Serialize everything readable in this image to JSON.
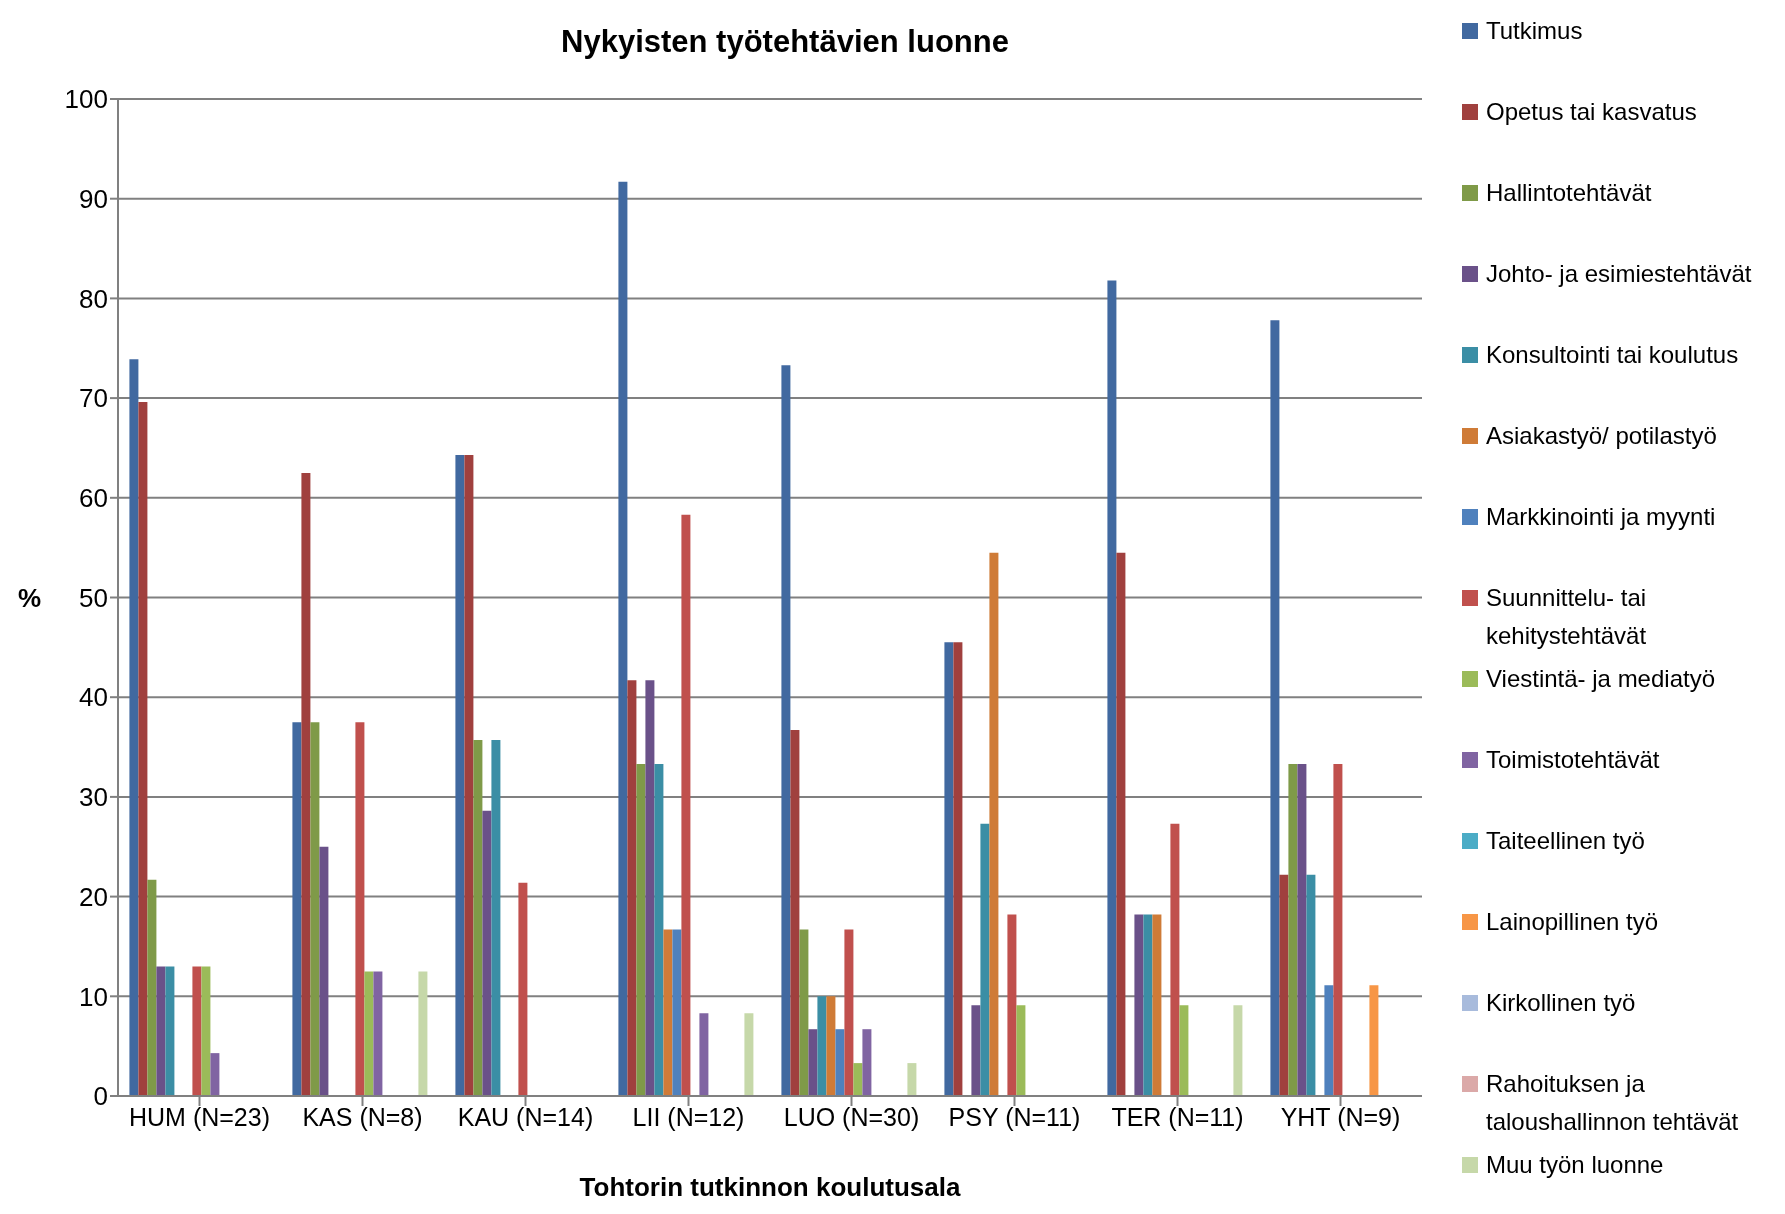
{
  "chart_data": {
    "type": "bar",
    "title": "Nykyisten työtehtävien luonne",
    "xlabel": "Tohtorin tutkinnon koulutusala",
    "ylabel": "%",
    "categories": [
      "HUM (N=23)",
      "KAS (N=8)",
      "KAU (N=14)",
      "LII (N=12)",
      "LUO (N=30)",
      "PSY (N=11)",
      "TER (N=11)",
      "YHT (N=9)"
    ],
    "series": [
      {
        "name": "Tutkimus",
        "color": "#4169a0",
        "values": [
          73.9,
          37.5,
          64.3,
          91.7,
          73.3,
          45.5,
          81.8,
          77.8
        ]
      },
      {
        "name": "Opetus tai kasvatus",
        "color": "#a0403e",
        "values": [
          69.6,
          62.5,
          64.3,
          41.7,
          36.7,
          45.5,
          54.5,
          22.2
        ]
      },
      {
        "name": "Hallintotehtävät",
        "color": "#7f9a48",
        "values": [
          21.7,
          37.5,
          35.7,
          33.3,
          16.7,
          0,
          0,
          33.3
        ]
      },
      {
        "name": "Johto- ja esimiestehtävät",
        "color": "#6a5189",
        "values": [
          13.0,
          25.0,
          28.6,
          41.7,
          6.7,
          9.1,
          18.2,
          33.3
        ]
      },
      {
        "name": "Konsultointi tai koulutus",
        "color": "#3b8ea5",
        "values": [
          13.0,
          0,
          35.7,
          33.3,
          10.0,
          27.3,
          18.2,
          22.2
        ]
      },
      {
        "name": "Asiakastyö/ potilastyö",
        "color": "#cf7b37",
        "values": [
          0,
          0,
          0,
          16.7,
          10.0,
          54.5,
          18.2,
          0
        ]
      },
      {
        "name": "Markkinointi ja myynti",
        "color": "#4f81bd",
        "values": [
          0,
          0,
          0,
          16.7,
          6.7,
          0,
          0,
          11.1
        ]
      },
      {
        "name": "Suunnittelu- tai kehitystehtävät",
        "color": "#c0504d",
        "values": [
          13.0,
          37.5,
          21.4,
          58.3,
          16.7,
          18.2,
          27.3,
          33.3
        ]
      },
      {
        "name": "Viestintä- ja mediatyö",
        "color": "#9bbb59",
        "values": [
          13.0,
          12.5,
          0,
          0,
          3.3,
          9.1,
          9.1,
          0
        ]
      },
      {
        "name": "Toimistotehtävät",
        "color": "#8064a2",
        "values": [
          4.3,
          12.5,
          0,
          8.3,
          6.7,
          0,
          0,
          0
        ]
      },
      {
        "name": "Taiteellinen työ",
        "color": "#4bacc6",
        "values": [
          0,
          0,
          0,
          0,
          0,
          0,
          0,
          0
        ]
      },
      {
        "name": "Lainopillinen työ",
        "color": "#f79646",
        "values": [
          0,
          0,
          0,
          0,
          0,
          0,
          0,
          11.1
        ]
      },
      {
        "name": "Kirkollinen työ",
        "color": "#a8bbdc",
        "values": [
          0,
          0,
          0,
          0,
          0,
          0,
          0,
          0
        ]
      },
      {
        "name": "Rahoituksen ja taloushallinnon tehtävät",
        "color": "#dba9a8",
        "values": [
          0,
          0,
          0,
          0,
          0,
          0,
          0,
          0
        ]
      },
      {
        "name": "Muu työn luonne",
        "color": "#c6d8a9",
        "values": [
          0,
          12.5,
          0,
          8.3,
          3.3,
          0,
          9.1,
          0
        ]
      }
    ],
    "ylim": [
      0,
      100
    ],
    "yticks": [
      0,
      10,
      20,
      30,
      40,
      50,
      60,
      70,
      80,
      90,
      100
    ],
    "grid": "y",
    "legend": "right"
  }
}
